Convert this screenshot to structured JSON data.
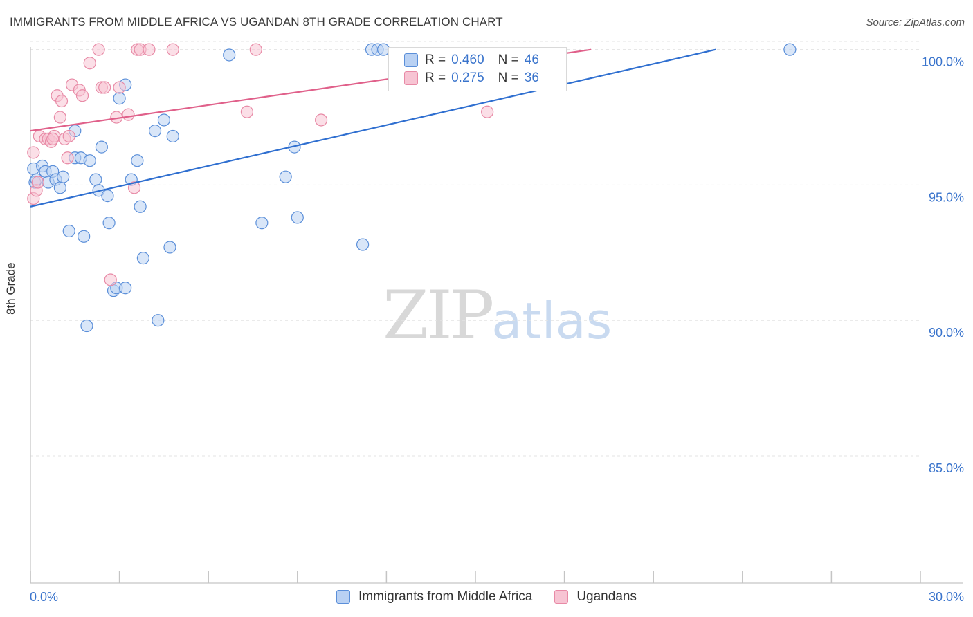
{
  "header": {
    "title": "IMMIGRANTS FROM MIDDLE AFRICA VS UGANDAN 8TH GRADE CORRELATION CHART",
    "source": "Source: ZipAtlas.com"
  },
  "watermark": {
    "zip": "ZIP",
    "atlas": "atlas"
  },
  "legend_top": [
    {
      "r_label": "R =",
      "r_value": "0.460",
      "n_label": "N =",
      "n_value": "46"
    },
    {
      "r_label": "R =",
      "r_value": "0.275",
      "n_label": "N =",
      "n_value": "36"
    }
  ],
  "legend_bottom": [
    {
      "label": "Immigrants from Middle Africa"
    },
    {
      "label": "Ugandans"
    }
  ],
  "colors": {
    "blue_fill": "#b9d1f3",
    "blue_stroke": "#5b8fd9",
    "blue_line": "#2f6fd0",
    "pink_fill": "#f7c4d3",
    "pink_stroke": "#e88aa6",
    "pink_line": "#e0608a",
    "tick_text": "#3a74cc",
    "grid": "#e3e3e3"
  },
  "chart_data": {
    "type": "scatter",
    "title": "IMMIGRANTS FROM MIDDLE AFRICA VS UGANDAN 8TH GRADE CORRELATION CHART",
    "xlabel": "",
    "ylabel": "8th Grade",
    "xlim": [
      0,
      30
    ],
    "ylim": [
      80.3,
      100.4
    ],
    "x_tick_labels": [
      {
        "value": 0,
        "label": "0.0%"
      },
      {
        "value": 30,
        "label": "30.0%"
      }
    ],
    "x_minor_ticks": [
      3,
      6,
      9,
      12,
      15,
      18,
      21,
      24,
      27
    ],
    "y_ticks": [
      {
        "value": 100,
        "label": "100.0%"
      },
      {
        "value": 95,
        "label": "95.0%"
      },
      {
        "value": 90,
        "label": "90.0%"
      },
      {
        "value": 85,
        "label": "85.0%"
      }
    ],
    "series": [
      {
        "name": "Immigrants from Middle Africa",
        "color": "blue",
        "R": 0.46,
        "N": 46,
        "trend": {
          "x": [
            0,
            23.1
          ],
          "y": [
            94.2,
            100.0
          ]
        },
        "points": [
          [
            0.1,
            95.6
          ],
          [
            0.15,
            95.1
          ],
          [
            0.2,
            95.2
          ],
          [
            0.4,
            95.7
          ],
          [
            0.5,
            95.5
          ],
          [
            0.6,
            95.1
          ],
          [
            0.75,
            95.5
          ],
          [
            0.85,
            95.2
          ],
          [
            1.0,
            94.9
          ],
          [
            1.1,
            95.3
          ],
          [
            1.3,
            93.3
          ],
          [
            1.5,
            96.0
          ],
          [
            1.5,
            97.0
          ],
          [
            1.7,
            96.0
          ],
          [
            1.8,
            93.1
          ],
          [
            1.9,
            89.8
          ],
          [
            2.0,
            95.9
          ],
          [
            2.2,
            95.2
          ],
          [
            2.3,
            94.8
          ],
          [
            2.4,
            96.4
          ],
          [
            2.6,
            94.6
          ],
          [
            2.65,
            93.6
          ],
          [
            2.8,
            91.1
          ],
          [
            2.9,
            91.2
          ],
          [
            3.0,
            98.2
          ],
          [
            3.2,
            91.2
          ],
          [
            3.2,
            98.7
          ],
          [
            3.4,
            95.2
          ],
          [
            3.6,
            95.9
          ],
          [
            3.7,
            94.2
          ],
          [
            3.8,
            92.3
          ],
          [
            4.2,
            97.0
          ],
          [
            4.3,
            90.0
          ],
          [
            4.5,
            97.4
          ],
          [
            4.7,
            92.7
          ],
          [
            4.8,
            96.8
          ],
          [
            6.7,
            99.8
          ],
          [
            7.8,
            93.6
          ],
          [
            8.6,
            95.3
          ],
          [
            8.9,
            96.4
          ],
          [
            9.0,
            93.8
          ],
          [
            11.2,
            92.8
          ],
          [
            11.5,
            100.0
          ],
          [
            11.7,
            100.0
          ],
          [
            11.9,
            100.0
          ],
          [
            25.6,
            100.0
          ]
        ]
      },
      {
        "name": "Ugandans",
        "color": "pink",
        "R": 0.275,
        "N": 36,
        "trend": {
          "x": [
            0,
            18.9
          ],
          "y": [
            97.0,
            100.0
          ]
        },
        "points": [
          [
            0.1,
            96.2
          ],
          [
            0.1,
            94.5
          ],
          [
            0.2,
            94.8
          ],
          [
            0.25,
            95.1
          ],
          [
            0.3,
            96.8
          ],
          [
            0.5,
            96.7
          ],
          [
            0.6,
            96.7
          ],
          [
            0.7,
            96.6
          ],
          [
            0.8,
            96.8
          ],
          [
            0.9,
            98.3
          ],
          [
            1.0,
            97.5
          ],
          [
            1.05,
            98.1
          ],
          [
            1.15,
            96.7
          ],
          [
            1.25,
            96.0
          ],
          [
            1.3,
            96.8
          ],
          [
            1.4,
            98.7
          ],
          [
            1.65,
            98.5
          ],
          [
            1.75,
            98.3
          ],
          [
            2.0,
            99.5
          ],
          [
            2.3,
            100.0
          ],
          [
            2.4,
            98.6
          ],
          [
            2.5,
            98.6
          ],
          [
            2.7,
            91.5
          ],
          [
            2.9,
            97.5
          ],
          [
            3.0,
            98.6
          ],
          [
            3.3,
            97.6
          ],
          [
            3.5,
            94.9
          ],
          [
            3.6,
            100.0
          ],
          [
            3.7,
            100.0
          ],
          [
            4.0,
            100.0
          ],
          [
            4.8,
            100.0
          ],
          [
            7.3,
            97.7
          ],
          [
            7.6,
            100.0
          ],
          [
            9.8,
            97.4
          ],
          [
            15.4,
            97.7
          ],
          [
            0.75,
            96.7
          ]
        ]
      }
    ]
  }
}
